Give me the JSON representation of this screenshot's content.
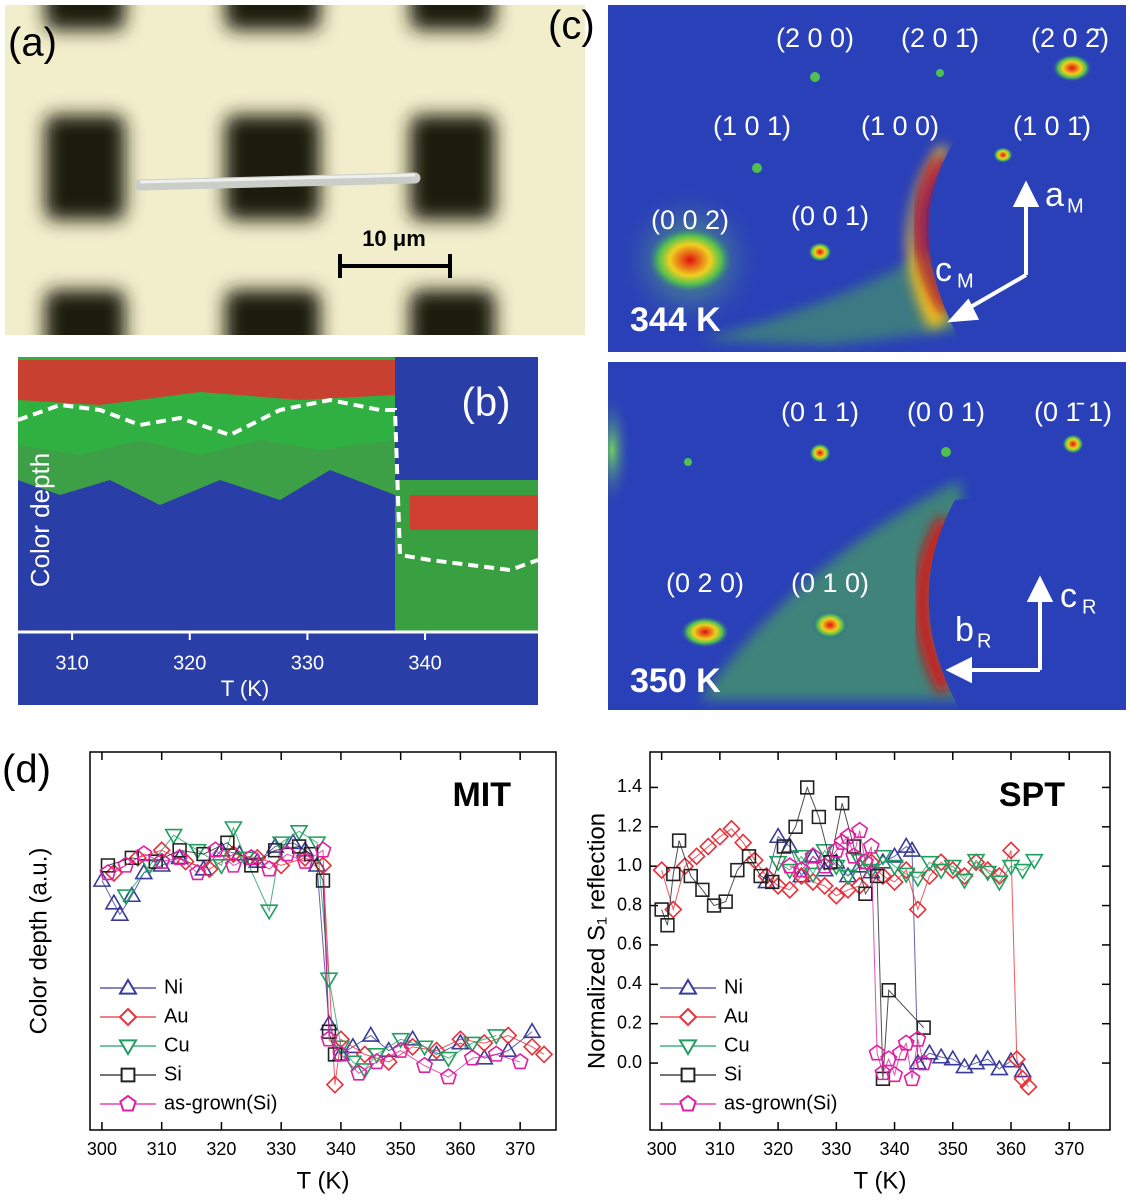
{
  "panels": {
    "a": {
      "label": "(a)",
      "scale_bar": "10 μm"
    },
    "b": {
      "label": "(b)",
      "ylabel": "Color depth",
      "xlabel": "T (K)",
      "xlim": [
        305.4,
        349.6
      ],
      "xticks": [
        310,
        320,
        330,
        340
      ]
    },
    "c": {
      "label": "(c)",
      "top": {
        "temperature": "344 K",
        "spots": [
          "(2 0 0)",
          "(2 0 1̄)",
          "(2 0 2̄)",
          "(1 0 1)",
          "(1 0 0)",
          "(1 0 1̄)",
          "(0 0 2)",
          "(0 0 1)"
        ],
        "axes": [
          {
            "main": "a",
            "sub": "M"
          },
          {
            "main": "c",
            "sub": "M"
          }
        ]
      },
      "bottom": {
        "temperature": "350 K",
        "spots": [
          "(0 1 1)",
          "(0 0 1)",
          "(0 1̄ 1)",
          "(0 2 0)",
          "(0 1 0)"
        ],
        "axes": [
          {
            "main": "c",
            "sub": "R"
          },
          {
            "main": "b",
            "sub": "R"
          }
        ]
      }
    }
  },
  "chart_data": [
    {
      "type": "scatter",
      "label": "(d)",
      "annotation": "MIT",
      "xlabel": "T (K)",
      "ylabel": "Color depth (a.u.)",
      "xlim": [
        298,
        376
      ],
      "ylim": [
        0,
        1
      ],
      "xticks": [
        300,
        310,
        320,
        330,
        340,
        350,
        360,
        370
      ],
      "legend": "lower left",
      "series": [
        {
          "name": "Ni",
          "color": "#3a3a9a",
          "marker": "triangle-up",
          "x": [
            300,
            302,
            303,
            305,
            307,
            310,
            313,
            317,
            320,
            323,
            326,
            329,
            332,
            334,
            336,
            338,
            340,
            342,
            345,
            348,
            352,
            356,
            360,
            364,
            368,
            372
          ],
          "values": [
            0.66,
            0.6,
            0.57,
            0.62,
            0.68,
            0.7,
            0.72,
            0.69,
            0.74,
            0.73,
            0.71,
            0.75,
            0.76,
            0.74,
            0.7,
            0.28,
            0.2,
            0.22,
            0.25,
            0.21,
            0.24,
            0.2,
            0.23,
            0.19,
            0.21,
            0.26
          ]
        },
        {
          "name": "Au",
          "color": "#e8303a",
          "marker": "diamond",
          "x": [
            302,
            306,
            310,
            314,
            318,
            322,
            326,
            330,
            334,
            337,
            339,
            340,
            344,
            348,
            352,
            356,
            360,
            364,
            368,
            372,
            374
          ],
          "values": [
            0.68,
            0.72,
            0.74,
            0.71,
            0.69,
            0.73,
            0.72,
            0.7,
            0.72,
            0.7,
            0.12,
            0.24,
            0.2,
            0.18,
            0.22,
            0.21,
            0.24,
            0.23,
            0.25,
            0.22,
            0.2
          ]
        },
        {
          "name": "Cu",
          "color": "#20a060",
          "marker": "triangle-down",
          "x": [
            304,
            308,
            312,
            316,
            320,
            322,
            324,
            328,
            330,
            333,
            336,
            338,
            340,
            342,
            344,
            346,
            350,
            354,
            358,
            362,
            366
          ],
          "values": [
            0.62,
            0.7,
            0.78,
            0.74,
            0.7,
            0.8,
            0.72,
            0.58,
            0.76,
            0.79,
            0.76,
            0.4,
            0.22,
            0.18,
            0.16,
            0.2,
            0.24,
            0.22,
            0.19,
            0.23,
            0.25
          ]
        },
        {
          "name": "Si",
          "color": "#222222",
          "marker": "square",
          "x": [
            301,
            305,
            309,
            313,
            317,
            321,
            325,
            329,
            333,
            335,
            337,
            338,
            339
          ],
          "values": [
            0.7,
            0.72,
            0.71,
            0.74,
            0.73,
            0.76,
            0.7,
            0.74,
            0.75,
            0.73,
            0.66,
            0.26,
            0.2
          ]
        },
        {
          "name": "as-grown(Si)",
          "color": "#e020a0",
          "marker": "pentagon",
          "x": [
            301,
            304,
            307,
            310,
            313,
            316,
            319,
            322,
            325,
            328,
            331,
            334,
            337,
            338,
            340,
            343,
            346,
            350,
            354,
            358,
            362,
            366,
            370
          ],
          "values": [
            0.68,
            0.7,
            0.73,
            0.71,
            0.72,
            0.68,
            0.74,
            0.7,
            0.72,
            0.69,
            0.73,
            0.71,
            0.74,
            0.24,
            0.2,
            0.15,
            0.18,
            0.21,
            0.17,
            0.14,
            0.19,
            0.2,
            0.18
          ]
        }
      ]
    },
    {
      "type": "scatter",
      "annotation": "SPT",
      "xlabel": "T (K)",
      "ylabel": "Normalized S₁ reflection",
      "xlim": [
        298,
        377
      ],
      "ylim": [
        -0.34,
        1.58
      ],
      "xticks": [
        300,
        310,
        320,
        330,
        340,
        350,
        360,
        370
      ],
      "yticks": [
        {
          "value": 0,
          "label": "0.0"
        },
        0.2,
        0.4,
        0.6,
        0.8,
        {
          "value": 1,
          "label": "1.0"
        },
        1.2,
        1.4
      ],
      "legend": "lower left",
      "series": [
        {
          "name": "Ni",
          "color": "#3a3a9a",
          "marker": "triangle-up",
          "x": [
            318,
            320,
            322,
            324,
            326,
            328,
            330,
            332,
            334,
            336,
            338,
            340,
            342,
            343,
            344,
            346,
            348,
            350,
            352,
            354,
            356,
            358,
            360,
            362
          ],
          "values": [
            0.92,
            1.15,
            1.1,
            0.95,
            1.05,
            0.98,
            1.02,
            0.95,
            1.0,
            0.97,
            1.02,
            1.05,
            1.1,
            1.08,
            0.0,
            0.05,
            0.03,
            0.02,
            -0.02,
            0.0,
            0.02,
            -0.03,
            0.01,
            -0.04
          ]
        },
        {
          "name": "Au",
          "color": "#e8303a",
          "marker": "diamond",
          "x": [
            300,
            302,
            304,
            306,
            308,
            310,
            312,
            314,
            316,
            318,
            320,
            322,
            324,
            326,
            328,
            330,
            332,
            334,
            336,
            338,
            340,
            342,
            344,
            346,
            348,
            350,
            352,
            354,
            356,
            358,
            360,
            361,
            362,
            363
          ],
          "values": [
            0.98,
            0.78,
            1.0,
            1.05,
            1.1,
            1.15,
            1.19,
            1.12,
            1.03,
            0.95,
            0.9,
            0.88,
            0.95,
            0.92,
            0.9,
            0.85,
            0.88,
            0.9,
            1.02,
            0.95,
            0.92,
            0.98,
            0.78,
            0.95,
            1.02,
            0.98,
            0.95,
            1.02,
            0.98,
            0.95,
            1.08,
            0.02,
            -0.08,
            -0.12
          ]
        },
        {
          "name": "Cu",
          "color": "#20a060",
          "marker": "triangle-down",
          "x": [
            320,
            322,
            324,
            326,
            328,
            330,
            332,
            334,
            336,
            338,
            340,
            342,
            344,
            346,
            348,
            350,
            352,
            354,
            356,
            358,
            360,
            362,
            364
          ],
          "values": [
            1.02,
            0.98,
            1.05,
            0.96,
            1.08,
            1.0,
            0.95,
            1.03,
            0.98,
            1.05,
            1.0,
            0.96,
            0.94,
            1.02,
            0.98,
            1.0,
            0.93,
            1.03,
            0.97,
            0.92,
            1.0,
            0.98,
            1.03
          ]
        },
        {
          "name": "Si",
          "color": "#222222",
          "marker": "square",
          "x": [
            300,
            301,
            302,
            303,
            305,
            307,
            309,
            311,
            313,
            315,
            317,
            319,
            321,
            323,
            325,
            327,
            329,
            331,
            333,
            335,
            337,
            338,
            339,
            345
          ],
          "values": [
            0.78,
            0.7,
            0.96,
            1.13,
            0.95,
            0.88,
            0.8,
            0.82,
            0.98,
            1.05,
            0.95,
            0.92,
            1.1,
            1.2,
            1.4,
            1.25,
            1.02,
            1.32,
            1.1,
            0.86,
            0.95,
            -0.08,
            0.37,
            0.18
          ]
        },
        {
          "name": "as-grown(Si)",
          "color": "#e020a0",
          "marker": "pentagon",
          "x": [
            322,
            324,
            326,
            328,
            330,
            331,
            332,
            333,
            334,
            335,
            336,
            337,
            338,
            339,
            340,
            341,
            342,
            343,
            344,
            345
          ],
          "values": [
            1.0,
            0.98,
            1.05,
            1.0,
            1.08,
            1.12,
            1.15,
            1.05,
            1.18,
            1.02,
            1.1,
            0.05,
            -0.05,
            0.02,
            -0.06,
            0.05,
            0.1,
            -0.08,
            0.12,
            0.0
          ]
        }
      ]
    }
  ]
}
